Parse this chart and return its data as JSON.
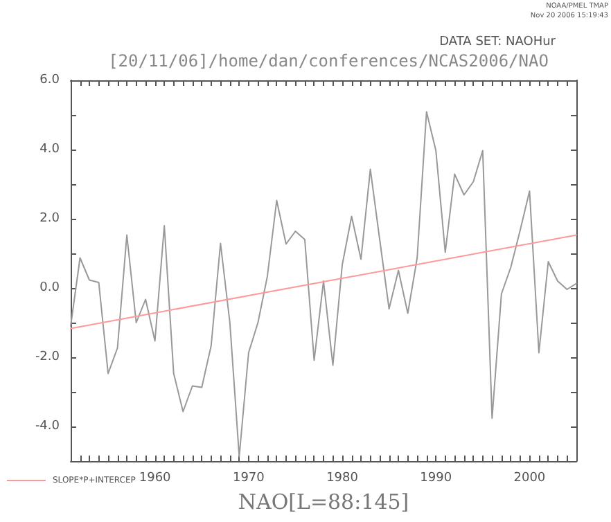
{
  "chart_data": {
    "type": "line",
    "title": "[20/11/06]/home/dan/conferences/NCAS2006/NAO",
    "xlabel": "NAO[L=88:145]",
    "annotations": [
      "NOAA/PMEL TMAP",
      "Nov 20 2006 15:19:43",
      "DATA SET: NAOHur"
    ],
    "x": [
      1951,
      1952,
      1953,
      1954,
      1955,
      1956,
      1957,
      1958,
      1959,
      1960,
      1961,
      1962,
      1963,
      1964,
      1965,
      1966,
      1967,
      1968,
      1969,
      1970,
      1971,
      1972,
      1973,
      1974,
      1975,
      1976,
      1977,
      1978,
      1979,
      1980,
      1981,
      1982,
      1983,
      1984,
      1985,
      1986,
      1987,
      1988,
      1989,
      1990,
      1991,
      1992,
      1993,
      1994,
      1995,
      1996,
      1997,
      1998,
      1999,
      2000,
      2001,
      2002,
      2003,
      2004,
      2005
    ],
    "series": [
      {
        "color": "#999999",
        "values": [
          -1.1,
          0.87,
          0.23,
          0.16,
          -2.47,
          -1.73,
          1.53,
          -1.0,
          -0.33,
          -1.53,
          1.8,
          -2.47,
          -3.57,
          -2.83,
          -2.87,
          -1.67,
          1.29,
          -1.0,
          -4.87,
          -1.87,
          -1.0,
          0.33,
          2.53,
          1.27,
          1.64,
          1.4,
          -2.09,
          0.2,
          -2.23,
          0.67,
          2.07,
          0.83,
          3.43,
          1.4,
          -0.6,
          0.51,
          -0.73,
          0.87,
          5.09,
          3.97,
          1.03,
          3.29,
          2.69,
          3.07,
          3.97,
          -3.76,
          -0.17,
          0.6,
          1.67,
          2.8,
          -1.87,
          0.76,
          0.2,
          -0.04,
          0.13
        ]
      },
      {
        "name": "SLOPE*P+INTERCEP",
        "color": "#ff9999",
        "x": [
          1951,
          2005
        ],
        "values": [
          -1.17,
          1.53
        ]
      }
    ],
    "xlim": [
      1951,
      2005
    ],
    "xticks": [
      {
        "value": 1951,
        "label": null
      },
      {
        "value": 1952,
        "label": null
      },
      {
        "value": 1953,
        "label": null
      },
      {
        "value": 1954,
        "label": null
      },
      {
        "value": 1955,
        "label": null
      },
      {
        "value": 1956,
        "label": null
      },
      {
        "value": 1957,
        "label": null
      },
      {
        "value": 1958,
        "label": null
      },
      {
        "value": 1959,
        "label": null
      },
      1960,
      {
        "value": 1961,
        "label": null
      },
      {
        "value": 1962,
        "label": null
      },
      {
        "value": 1963,
        "label": null
      },
      {
        "value": 1964,
        "label": null
      },
      {
        "value": 1965,
        "label": null
      },
      {
        "value": 1966,
        "label": null
      },
      {
        "value": 1967,
        "label": null
      },
      {
        "value": 1968,
        "label": null
      },
      {
        "value": 1969,
        "label": null
      },
      1970,
      {
        "value": 1971,
        "label": null
      },
      {
        "value": 1972,
        "label": null
      },
      {
        "value": 1973,
        "label": null
      },
      {
        "value": 1974,
        "label": null
      },
      {
        "value": 1975,
        "label": null
      },
      {
        "value": 1976,
        "label": null
      },
      {
        "value": 1977,
        "label": null
      },
      {
        "value": 1978,
        "label": null
      },
      {
        "value": 1979,
        "label": null
      },
      1980,
      {
        "value": 1981,
        "label": null
      },
      {
        "value": 1982,
        "label": null
      },
      {
        "value": 1983,
        "label": null
      },
      {
        "value": 1984,
        "label": null
      },
      {
        "value": 1985,
        "label": null
      },
      {
        "value": 1986,
        "label": null
      },
      {
        "value": 1987,
        "label": null
      },
      {
        "value": 1988,
        "label": null
      },
      {
        "value": 1989,
        "label": null
      },
      1990,
      {
        "value": 1991,
        "label": null
      },
      {
        "value": 1992,
        "label": null
      },
      {
        "value": 1993,
        "label": null
      },
      {
        "value": 1994,
        "label": null
      },
      {
        "value": 1995,
        "label": null
      },
      {
        "value": 1996,
        "label": null
      },
      {
        "value": 1997,
        "label": null
      },
      {
        "value": 1998,
        "label": null
      },
      {
        "value": 1999,
        "label": null
      },
      2000,
      {
        "value": 2001,
        "label": null
      },
      {
        "value": 2002,
        "label": null
      },
      {
        "value": 2003,
        "label": null
      },
      {
        "value": 2004,
        "label": null
      },
      {
        "value": 2005,
        "label": null
      }
    ],
    "ylim": [
      -5,
      6
    ],
    "yticks": [
      {
        "value": -5,
        "label": null
      },
      {
        "value": -4,
        "label": "-4.0"
      },
      {
        "value": -3,
        "label": null
      },
      {
        "value": -2,
        "label": "-2.0"
      },
      {
        "value": -1,
        "label": null
      },
      {
        "value": 0,
        "label": "0.0"
      },
      {
        "value": 1,
        "label": null
      },
      {
        "value": 2,
        "label": "2.0"
      },
      {
        "value": 3,
        "label": null
      },
      {
        "value": 4,
        "label": "4.0"
      },
      {
        "value": 5,
        "label": null
      },
      {
        "value": 6,
        "label": "6.0"
      }
    ],
    "legend": "bottom left",
    "line_style": "solid"
  }
}
